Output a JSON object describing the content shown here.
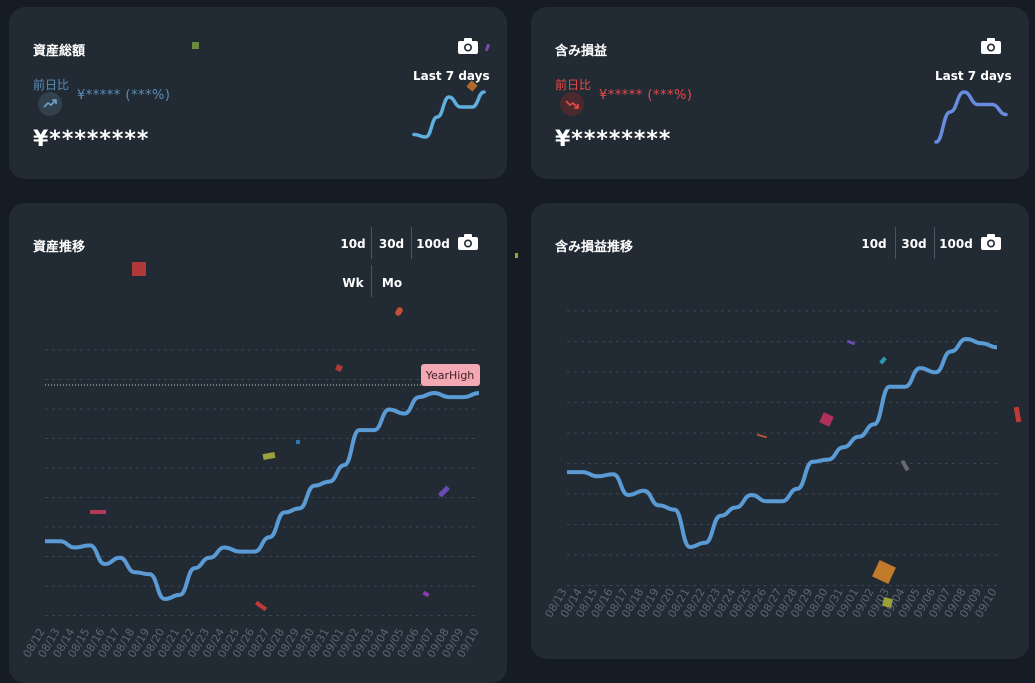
{
  "cards": {
    "total_assets": {
      "title": "資産総額",
      "compare_label": "前日比",
      "change_text": "¥***** (***%)",
      "amount": "¥********",
      "spark_label": "Last 7 days",
      "trend": "up",
      "color": "#5b9bd5",
      "spark_values": [
        0.15,
        0.1,
        0.5,
        0.9,
        0.7,
        0.7,
        1.0
      ]
    },
    "unrealized_pl": {
      "title": "含み損益",
      "compare_label": "前日比",
      "change_text": "¥***** (***%)",
      "amount": "¥********",
      "spark_label": "Last 7 days",
      "trend": "down",
      "color": "#e84a4a",
      "spark_values": [
        0.0,
        0.6,
        1.0,
        0.75,
        0.75,
        0.55
      ]
    }
  },
  "asset_history": {
    "title": "資産推移",
    "buttons": [
      "10d",
      "30d",
      "100d"
    ],
    "buttons_row2": [
      "Wk",
      "Mo"
    ],
    "high_label": "YearHigh",
    "chart_data": {
      "type": "line",
      "x": [
        "08/12",
        "08/13",
        "08/14",
        "08/15",
        "08/16",
        "08/17",
        "08/18",
        "08/19",
        "08/20",
        "08/21",
        "08/22",
        "08/23",
        "08/24",
        "08/25",
        "08/26",
        "08/27",
        "08/28",
        "08/29",
        "08/30",
        "08/31",
        "09/01",
        "09/02",
        "09/03",
        "09/04",
        "09/05",
        "09/06",
        "09/07",
        "09/08",
        "09/09",
        "09/10"
      ],
      "values": [
        0.28,
        0.28,
        0.25,
        0.26,
        0.17,
        0.2,
        0.13,
        0.12,
        0.0,
        0.02,
        0.15,
        0.2,
        0.25,
        0.23,
        0.23,
        0.3,
        0.42,
        0.44,
        0.55,
        0.57,
        0.65,
        0.82,
        0.82,
        0.92,
        0.9,
        0.98,
        1.0,
        0.98,
        0.98,
        1.0
      ],
      "reference_line": 1.0,
      "grid": true,
      "color": "#5b9bd5"
    }
  },
  "pl_history": {
    "title": "含み損益推移",
    "buttons": [
      "10d",
      "30d",
      "100d"
    ],
    "chart_data": {
      "type": "line",
      "x": [
        "08/13",
        "08/14",
        "08/15",
        "08/16",
        "08/17",
        "08/18",
        "08/19",
        "08/20",
        "08/21",
        "08/22",
        "08/23",
        "08/24",
        "08/25",
        "08/26",
        "08/27",
        "08/28",
        "08/29",
        "08/30",
        "08/31",
        "09/01",
        "09/02",
        "09/03",
        "09/04",
        "09/05",
        "09/06",
        "09/07",
        "09/08",
        "09/09",
        "09/10"
      ],
      "values": [
        0.36,
        0.36,
        0.34,
        0.35,
        0.25,
        0.27,
        0.2,
        0.18,
        0.0,
        0.02,
        0.15,
        0.19,
        0.25,
        0.22,
        0.22,
        0.28,
        0.41,
        0.42,
        0.48,
        0.53,
        0.59,
        0.77,
        0.77,
        0.86,
        0.84,
        0.94,
        1.0,
        0.98,
        0.96
      ],
      "grid": true,
      "color": "#5b9bd5"
    }
  },
  "icons": {
    "camera": "camera-icon",
    "trend_up": "trend-up-icon",
    "trend_down": "trend-down-icon"
  }
}
